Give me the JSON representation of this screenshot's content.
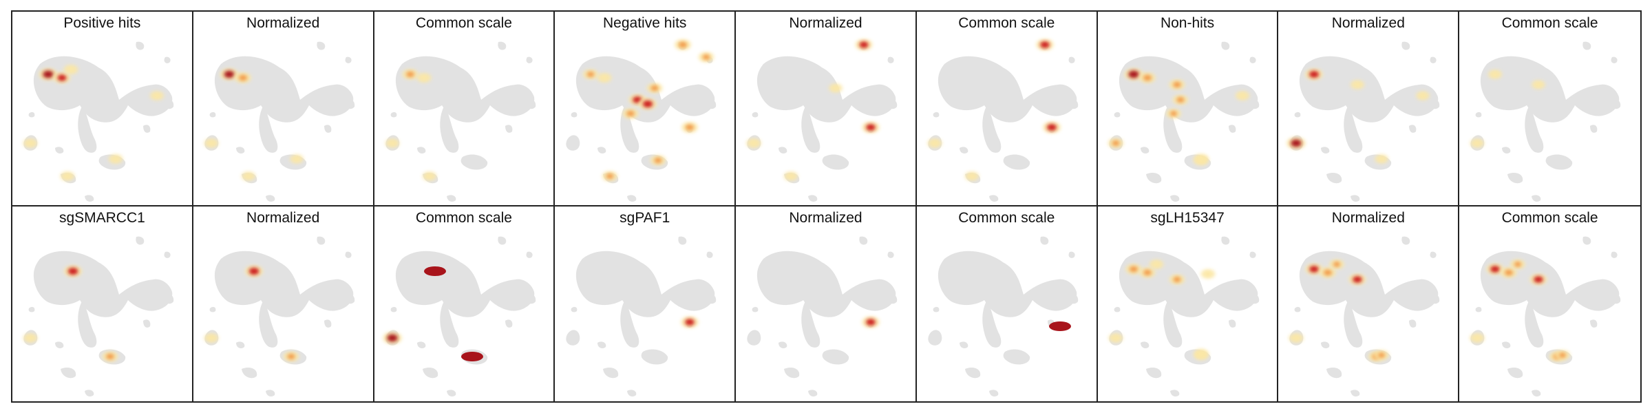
{
  "colors": {
    "background_cells": "#e2e2e2",
    "density_low": "#fbe7a6",
    "density_mid": "#f29a4a",
    "density_high": "#cc1f1f",
    "density_max": "#a8141b",
    "border": "#222222"
  },
  "panels": [
    {
      "title": "Positive hits",
      "hotspots": [
        {
          "c": "A",
          "i": 0.95
        },
        {
          "c": "B",
          "i": 0.7
        },
        {
          "c": "C",
          "i": 0.35
        },
        {
          "c": "L",
          "i": 0.3
        },
        {
          "c": "M",
          "i": 0.3
        },
        {
          "c": "J",
          "i": 0.25
        },
        {
          "c": "Q",
          "i": 0.3
        }
      ]
    },
    {
      "title": "Normalized",
      "hotspots": [
        {
          "c": "A",
          "i": 0.9
        },
        {
          "c": "B",
          "i": 0.6
        },
        {
          "c": "L",
          "i": 0.3
        },
        {
          "c": "Q",
          "i": 0.25
        },
        {
          "c": "M",
          "i": 0.2
        }
      ]
    },
    {
      "title": "Common scale",
      "hotspots": [
        {
          "c": "A",
          "i": 0.55
        },
        {
          "c": "B",
          "i": 0.35
        },
        {
          "c": "L",
          "i": 0.25
        },
        {
          "c": "Q",
          "i": 0.25
        }
      ]
    },
    {
      "title": "Negative hits",
      "hotspots": [
        {
          "c": "A",
          "i": 0.45
        },
        {
          "c": "E",
          "i": 0.75
        },
        {
          "c": "F",
          "i": 0.85
        },
        {
          "c": "G",
          "i": 0.55
        },
        {
          "c": "H",
          "i": 0.5
        },
        {
          "c": "K",
          "i": 0.6
        },
        {
          "c": "N",
          "i": 0.6
        },
        {
          "c": "O",
          "i": 0.45
        },
        {
          "c": "P",
          "i": 0.5
        },
        {
          "c": "Q",
          "i": 0.45
        },
        {
          "c": "B",
          "i": 0.35
        }
      ]
    },
    {
      "title": "Normalized",
      "hotspots": [
        {
          "c": "K",
          "i": 0.7
        },
        {
          "c": "N",
          "i": 0.75
        },
        {
          "c": "L",
          "i": 0.35
        },
        {
          "c": "Q",
          "i": 0.25
        },
        {
          "c": "H",
          "i": 0.2
        }
      ]
    },
    {
      "title": "Common scale",
      "hotspots": [
        {
          "c": "K",
          "i": 0.75
        },
        {
          "c": "N",
          "i": 0.8
        },
        {
          "c": "L",
          "i": 0.3
        },
        {
          "c": "Q",
          "i": 0.25
        }
      ]
    },
    {
      "title": "Non-hits",
      "hotspots": [
        {
          "c": "A",
          "i": 0.95
        },
        {
          "c": "B",
          "i": 0.6
        },
        {
          "c": "D",
          "i": 0.55
        },
        {
          "c": "E",
          "i": 0.5
        },
        {
          "c": "G",
          "i": 0.4
        },
        {
          "c": "L",
          "i": 0.45
        },
        {
          "c": "M",
          "i": 0.35
        },
        {
          "c": "J",
          "i": 0.3
        },
        {
          "c": "P",
          "i": 0.3
        }
      ]
    },
    {
      "title": "Normalized",
      "hotspots": [
        {
          "c": "A",
          "i": 0.8
        },
        {
          "c": "L",
          "i": 0.95
        },
        {
          "c": "D",
          "i": 0.25
        },
        {
          "c": "M",
          "i": 0.2
        },
        {
          "c": "J",
          "i": 0.2
        }
      ]
    },
    {
      "title": "Common scale",
      "hotspots": [
        {
          "c": "A",
          "i": 0.25
        },
        {
          "c": "L",
          "i": 0.25
        },
        {
          "c": "D",
          "i": 0.2
        }
      ]
    },
    {
      "title": "sgSMARCC1",
      "hotspots": [
        {
          "c": "R",
          "i": 0.85
        },
        {
          "c": "L",
          "i": 0.3
        },
        {
          "c": "S",
          "i": 0.55
        }
      ]
    },
    {
      "title": "Normalized",
      "hotspots": [
        {
          "c": "R",
          "i": 0.85
        },
        {
          "c": "L",
          "i": 0.3
        },
        {
          "c": "S",
          "i": 0.5
        }
      ]
    },
    {
      "title": "Common scale",
      "hotspots": [
        {
          "c": "R",
          "i": 1.0,
          "big": true
        },
        {
          "c": "L",
          "i": 0.95
        },
        {
          "c": "S",
          "i": 1.0,
          "big": true
        }
      ]
    },
    {
      "title": "sgPAF1",
      "hotspots": [
        {
          "c": "N",
          "i": 0.75
        }
      ]
    },
    {
      "title": "Normalized",
      "hotspots": [
        {
          "c": "N",
          "i": 0.75
        }
      ]
    },
    {
      "title": "Common scale",
      "hotspots": [
        {
          "c": "T",
          "i": 1.0,
          "big": true
        }
      ]
    },
    {
      "title": "sgLH15347",
      "hotspots": [
        {
          "c": "A",
          "i": 0.6
        },
        {
          "c": "B",
          "i": 0.55
        },
        {
          "c": "D",
          "i": 0.5
        },
        {
          "c": "C",
          "i": 0.3
        },
        {
          "c": "I",
          "i": 0.3
        },
        {
          "c": "L",
          "i": 0.3
        },
        {
          "c": "P",
          "i": 0.3
        },
        {
          "c": "M",
          "i": 0.25
        }
      ]
    },
    {
      "title": "Normalized",
      "hotspots": [
        {
          "c": "A",
          "i": 0.75
        },
        {
          "c": "B",
          "i": 0.6
        },
        {
          "c": "D",
          "i": 0.75
        },
        {
          "c": "C",
          "i": 0.4
        },
        {
          "c": "L",
          "i": 0.35
        },
        {
          "c": "S",
          "i": 0.5
        },
        {
          "c": "P",
          "i": 0.4
        }
      ]
    },
    {
      "title": "Common scale",
      "hotspots": [
        {
          "c": "A",
          "i": 0.75
        },
        {
          "c": "B",
          "i": 0.6
        },
        {
          "c": "D",
          "i": 0.75
        },
        {
          "c": "C",
          "i": 0.4
        },
        {
          "c": "L",
          "i": 0.35
        },
        {
          "c": "S",
          "i": 0.5
        },
        {
          "c": "P",
          "i": 0.4
        }
      ]
    }
  ]
}
